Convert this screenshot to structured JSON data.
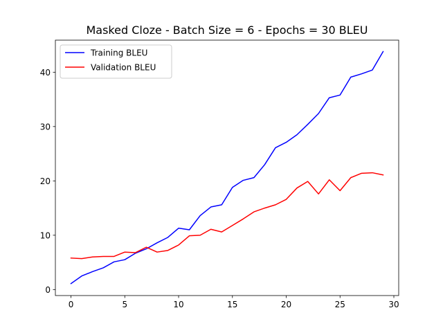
{
  "chart_data": {
    "type": "line",
    "title": "Masked Cloze - Batch Size = 6 - Epochs = 30 BLEU",
    "xlabel": "",
    "ylabel": "",
    "xlim": [
      -1.45,
      30.45
    ],
    "ylim": [
      -1.1,
      45.9
    ],
    "x_ticks": [
      0,
      5,
      10,
      15,
      20,
      25,
      30
    ],
    "y_ticks": [
      0,
      10,
      20,
      30,
      40
    ],
    "grid": false,
    "legend_position": "upper left",
    "x": [
      0,
      1,
      2,
      3,
      4,
      5,
      6,
      7,
      8,
      9,
      10,
      11,
      12,
      13,
      14,
      15,
      16,
      17,
      18,
      19,
      20,
      21,
      22,
      23,
      24,
      25,
      26,
      27,
      28,
      29
    ],
    "series": [
      {
        "name": "Training BLEU",
        "color": "#0000ff",
        "values": [
          1.1,
          2.5,
          3.3,
          4.0,
          5.1,
          5.5,
          6.7,
          7.5,
          8.6,
          9.6,
          11.3,
          11.0,
          13.6,
          15.2,
          15.6,
          18.8,
          20.1,
          20.6,
          23.0,
          26.1,
          27.1,
          28.5,
          30.4,
          32.4,
          35.3,
          35.8,
          39.1,
          39.7,
          40.4,
          43.8
        ]
      },
      {
        "name": "Validation BLEU",
        "color": "#ff0000",
        "values": [
          5.8,
          5.7,
          6.0,
          6.1,
          6.1,
          6.9,
          6.8,
          7.8,
          6.9,
          7.2,
          8.2,
          9.9,
          10.0,
          11.1,
          10.6,
          11.8,
          13.0,
          14.3,
          15.0,
          15.6,
          16.6,
          18.7,
          19.9,
          17.6,
          20.2,
          18.2,
          20.6,
          21.4,
          21.5,
          21.1
        ]
      }
    ]
  }
}
